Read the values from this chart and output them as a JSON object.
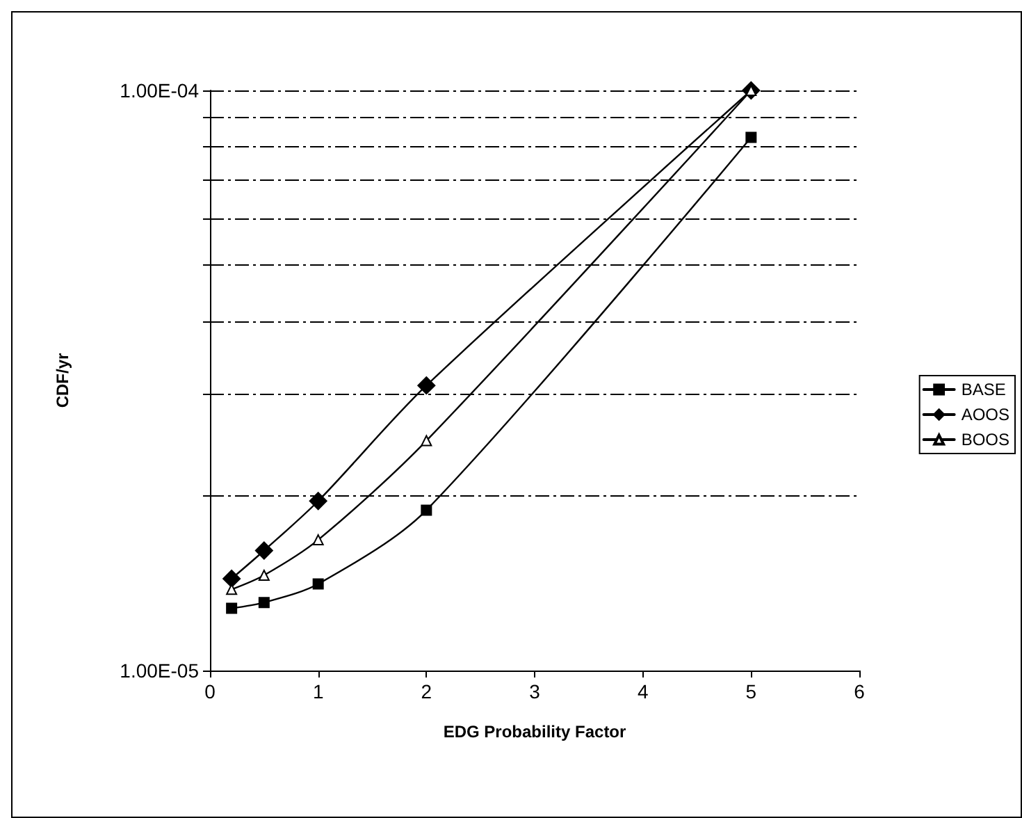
{
  "chart_data": {
    "type": "line",
    "xlabel": "EDG Probability Factor",
    "ylabel": "CDF/yr",
    "log": "y",
    "grid": "y",
    "legend": "right",
    "line_style": "solid",
    "xlim": [
      0,
      6
    ],
    "xticks": [
      0,
      1,
      2,
      3,
      4,
      5,
      6
    ],
    "ylim": [
      1e-05,
      0.0001
    ],
    "yticks": [
      {
        "value": 1e-05,
        "label": "1.00E-05"
      },
      {
        "value": 2e-05,
        "label": null
      },
      {
        "value": 3e-05,
        "label": null
      },
      {
        "value": 4e-05,
        "label": null
      },
      {
        "value": 5e-05,
        "label": null
      },
      {
        "value": 6e-05,
        "label": null
      },
      {
        "value": 7e-05,
        "label": null
      },
      {
        "value": 8e-05,
        "label": null
      },
      {
        "value": 9e-05,
        "label": null
      },
      {
        "value": 0.0001,
        "label": "1.00E-04"
      }
    ],
    "x": [
      0.2,
      0.5,
      1,
      2,
      5
    ],
    "series": [
      {
        "name": "BASE",
        "color": "#000000",
        "marker": "square",
        "values": [
          1.28e-05,
          1.31e-05,
          1.41e-05,
          1.89e-05,
          8.3e-05
        ]
      },
      {
        "name": "AOOS",
        "color": "#000000",
        "marker": "diamond",
        "values": [
          1.44e-05,
          1.61e-05,
          1.96e-05,
          3.1e-05,
          0.0001
        ]
      },
      {
        "name": "BOOS",
        "color": "#000000",
        "marker": "triangle",
        "values": [
          1.38e-05,
          1.46e-05,
          1.68e-05,
          2.49e-05,
          0.0001
        ]
      }
    ]
  }
}
